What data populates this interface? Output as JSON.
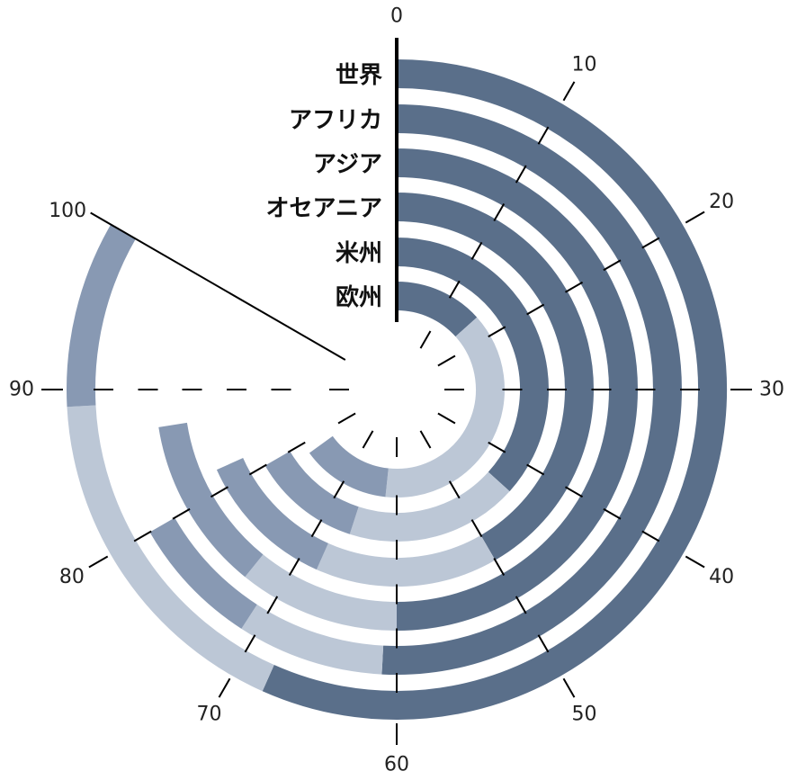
{
  "chart_data": {
    "type": "radial-stacked-bar",
    "title": "",
    "axis_ticks": [
      0,
      10,
      20,
      30,
      40,
      50,
      60,
      70,
      80,
      90,
      100
    ],
    "axis_range": [
      0,
      100
    ],
    "segment_colors": [
      "#5a6f8a",
      "#bcc7d6",
      "#8899b3"
    ],
    "categories": [
      "世界",
      "アフリカ",
      "アジア",
      "オセアニア",
      "米州",
      "欧州"
    ],
    "series": [
      {
        "values": [
          68,
          61,
          60,
          50,
          44,
          16
        ]
      },
      {
        "values": [
          21,
          10,
          13,
          18,
          22,
          46
        ]
      },
      {
        "values": [
          11,
          9,
          14,
          14,
          14,
          16
        ]
      }
    ]
  }
}
